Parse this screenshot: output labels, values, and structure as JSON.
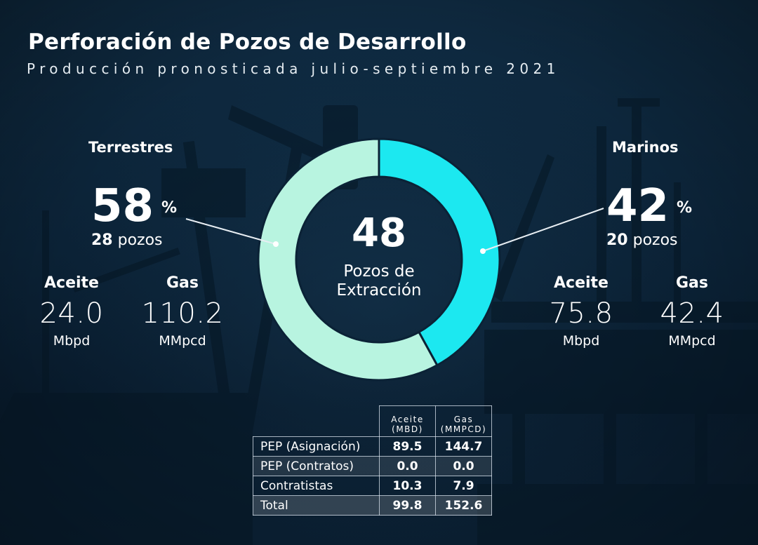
{
  "title": "Perforación de Pozos de Desarrollo",
  "subtitle": "Producción pronosticada julio-septiembre 2021",
  "colors": {
    "terrestres": "#b8f4e0",
    "marinos": "#1ce8f0",
    "background": "#0b2236"
  },
  "center": {
    "value": "48",
    "label_line1": "Pozos de",
    "label_line2": "Extracción"
  },
  "terrestres": {
    "title": "Terrestres",
    "percent": "58",
    "percent_sign": "%",
    "wells_count": "28",
    "wells_unit": "pozos",
    "aceite_label": "Aceite",
    "aceite_value": "24.0",
    "aceite_unit": "Mbpd",
    "gas_label": "Gas",
    "gas_value": "110.2",
    "gas_unit": "MMpcd"
  },
  "marinos": {
    "title": "Marinos",
    "percent": "42",
    "percent_sign": "%",
    "wells_count": "20",
    "wells_unit": "pozos",
    "aceite_label": "Aceite",
    "aceite_value": "75.8",
    "aceite_unit": "Mbpd",
    "gas_label": "Gas",
    "gas_value": "42.4",
    "gas_unit": "MMpcd"
  },
  "chart_data": [
    {
      "type": "pie",
      "categories": [
        "Terrestres",
        "Marinos"
      ],
      "values": [
        58,
        42
      ],
      "counts": [
        28,
        20
      ],
      "total": 48,
      "unit": "%",
      "title": ""
    },
    {
      "type": "table",
      "columns": [
        {
          "line1": "Aceite",
          "line2": "(MBD)"
        },
        {
          "line1": "Gas",
          "line2": "(MMPCD)"
        }
      ],
      "rows": [
        {
          "name": "PEP (Asignación)",
          "aceite": "89.5",
          "gas": "144.7"
        },
        {
          "name": "PEP (Contratos)",
          "aceite": "0.0",
          "gas": "0.0"
        },
        {
          "name": "Contratistas",
          "aceite": "10.3",
          "gas": "7.9"
        },
        {
          "name": "Total",
          "aceite": "99.8",
          "gas": "152.6"
        }
      ]
    }
  ]
}
